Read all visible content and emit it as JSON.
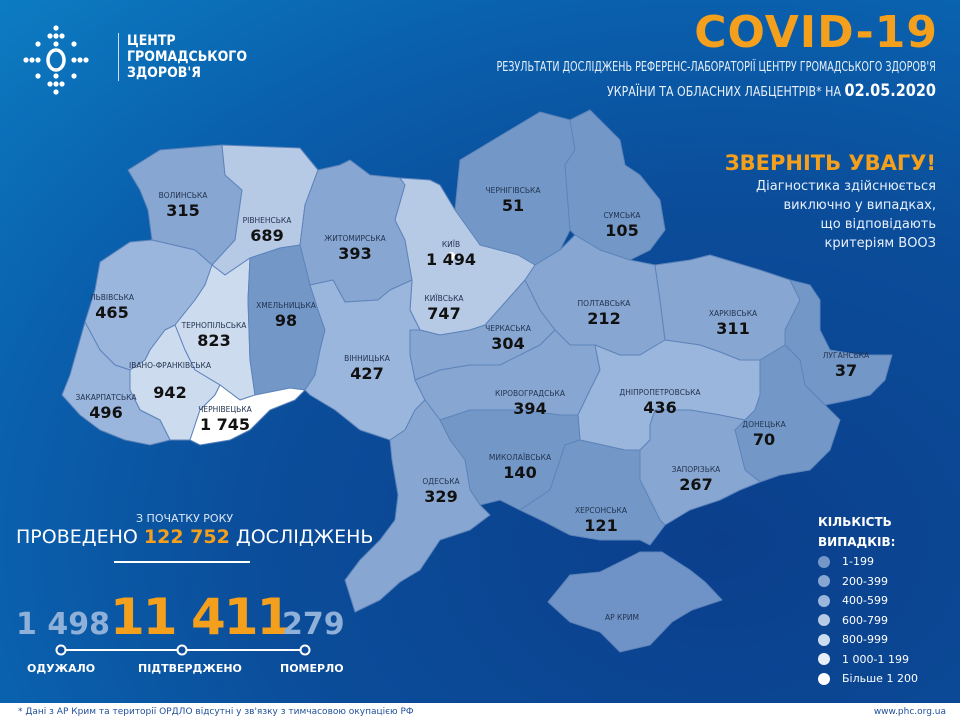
{
  "header": {
    "org_lines": [
      "ЦЕНТР",
      "ГРОМАДСЬКОГО",
      "ЗДОРОВ'Я"
    ],
    "title": "COVID-19",
    "subtitle_line1": "РЕЗУЛЬТАТИ ДОСЛІДЖЕНЬ РЕФЕРЕНС-ЛАБОРАТОРІЇ ЦЕНТРУ ГРОМАДСЬКОГО ЗДОРОВ'Я",
    "subtitle_line2": "УКРАЇНИ ТА ОБЛАСНИХ ЛАБЦЕНТРІВ* НА",
    "date": "02.05.2020"
  },
  "attention": {
    "title": "ЗВЕРНІТЬ УВАГУ!",
    "lines": [
      "Діагностика здійснюється",
      "виключно у випадках,",
      "що відповідають",
      "критеріям ВООЗ"
    ]
  },
  "regions": [
    {
      "id": "volyn",
      "name": "ВОЛИНСЬКА",
      "value": "315"
    },
    {
      "id": "rivne",
      "name": "РІВНЕНСЬКА",
      "value": "689"
    },
    {
      "id": "zhytomyr",
      "name": "ЖИТОМИРСЬКА",
      "value": "393"
    },
    {
      "id": "kyiv-city",
      "name": "КИЇВ",
      "value": "1 494"
    },
    {
      "id": "chernihiv",
      "name": "ЧЕРНІГІВСЬКА",
      "value": "51"
    },
    {
      "id": "sumy",
      "name": "СУМСЬКА",
      "value": "105"
    },
    {
      "id": "lviv",
      "name": "ЛЬВІВСЬКА",
      "value": "465"
    },
    {
      "id": "ternopil",
      "name": "ТЕРНОПІЛЬСЬКА",
      "value": "823"
    },
    {
      "id": "khmelnytskyi",
      "name": "ХМЕЛЬНИЦЬКА",
      "value": "98"
    },
    {
      "id": "kyiv",
      "name": "КИЇВСЬКА",
      "value": "747"
    },
    {
      "id": "cherkasy",
      "name": "ЧЕРКАСЬКА",
      "value": "304"
    },
    {
      "id": "poltava",
      "name": "ПОЛТАВСЬКА",
      "value": "212"
    },
    {
      "id": "kharkiv",
      "name": "ХАРКІВСЬКА",
      "value": "311"
    },
    {
      "id": "luhansk",
      "name": "ЛУГАНСЬКА",
      "value": "37"
    },
    {
      "id": "vinnytsia",
      "name": "ВІННИЦЬКА",
      "value": "427"
    },
    {
      "id": "ivano-frankivsk",
      "name": "ІВАНО-ФРАНКІВСЬКА",
      "value": "942"
    },
    {
      "id": "zakarpattia",
      "name": "ЗАКАРПАТСЬКА",
      "value": "496"
    },
    {
      "id": "chernivtsi",
      "name": "ЧЕРНІВЕЦЬКА",
      "value": "1 745"
    },
    {
      "id": "kirovohrad",
      "name": "КІРОВОГРАДСЬКА",
      "value": "394"
    },
    {
      "id": "dnipro",
      "name": "ДНІПРОПЕТРОВСЬКА",
      "value": "436"
    },
    {
      "id": "donetsk",
      "name": "ДОНЕЦЬКА",
      "value": "70"
    },
    {
      "id": "mykolaiv",
      "name": "МИКОЛАЇВСЬКА",
      "value": "140"
    },
    {
      "id": "odesa",
      "name": "ОДЕСЬКА",
      "value": "329"
    },
    {
      "id": "zaporizhzhia",
      "name": "ЗАПОРІЗЬКА",
      "value": "267"
    },
    {
      "id": "kherson",
      "name": "ХЕРСОНСЬКА",
      "value": "121"
    },
    {
      "id": "crimea",
      "name": "АР КРИМ",
      "value": ""
    }
  ],
  "stats": {
    "tests_caption": "З ПОЧАТКУ РОКУ",
    "tests_prefix": "ПРОВЕДЕНО",
    "tests_value": "122 752",
    "tests_suffix": "ДОСЛІДЖЕНЬ",
    "recovered": "1 498",
    "recovered_label": "ОДУЖАЛО",
    "confirmed": "11 411",
    "confirmed_label": "ПІДТВЕРДЖЕНО",
    "deaths": "279",
    "deaths_label": "ПОМЕРЛО"
  },
  "legend": {
    "title_line1": "КІЛЬКІСТЬ",
    "title_line2": "ВИПАДКІВ:",
    "items": [
      {
        "label": "1-199",
        "color": "#7398c8"
      },
      {
        "label": "200-399",
        "color": "#87a7d2"
      },
      {
        "label": "400-599",
        "color": "#9bb6dc"
      },
      {
        "label": "600-799",
        "color": "#b6cae6"
      },
      {
        "label": "800-999",
        "color": "#cddbef"
      },
      {
        "label": "1 000-1 199",
        "color": "#e6eef8"
      },
      {
        "label": "Більше 1 200",
        "color": "#ffffff"
      }
    ]
  },
  "footer": {
    "note": "* Дані з АР Крим та території ОРДЛО відсутні у зв'язку з тимчасовою окупацією РФ",
    "url": "www.phc.org.ua"
  },
  "colors": {
    "accent": "#f5a01c",
    "no_data": "#6f93c6"
  }
}
